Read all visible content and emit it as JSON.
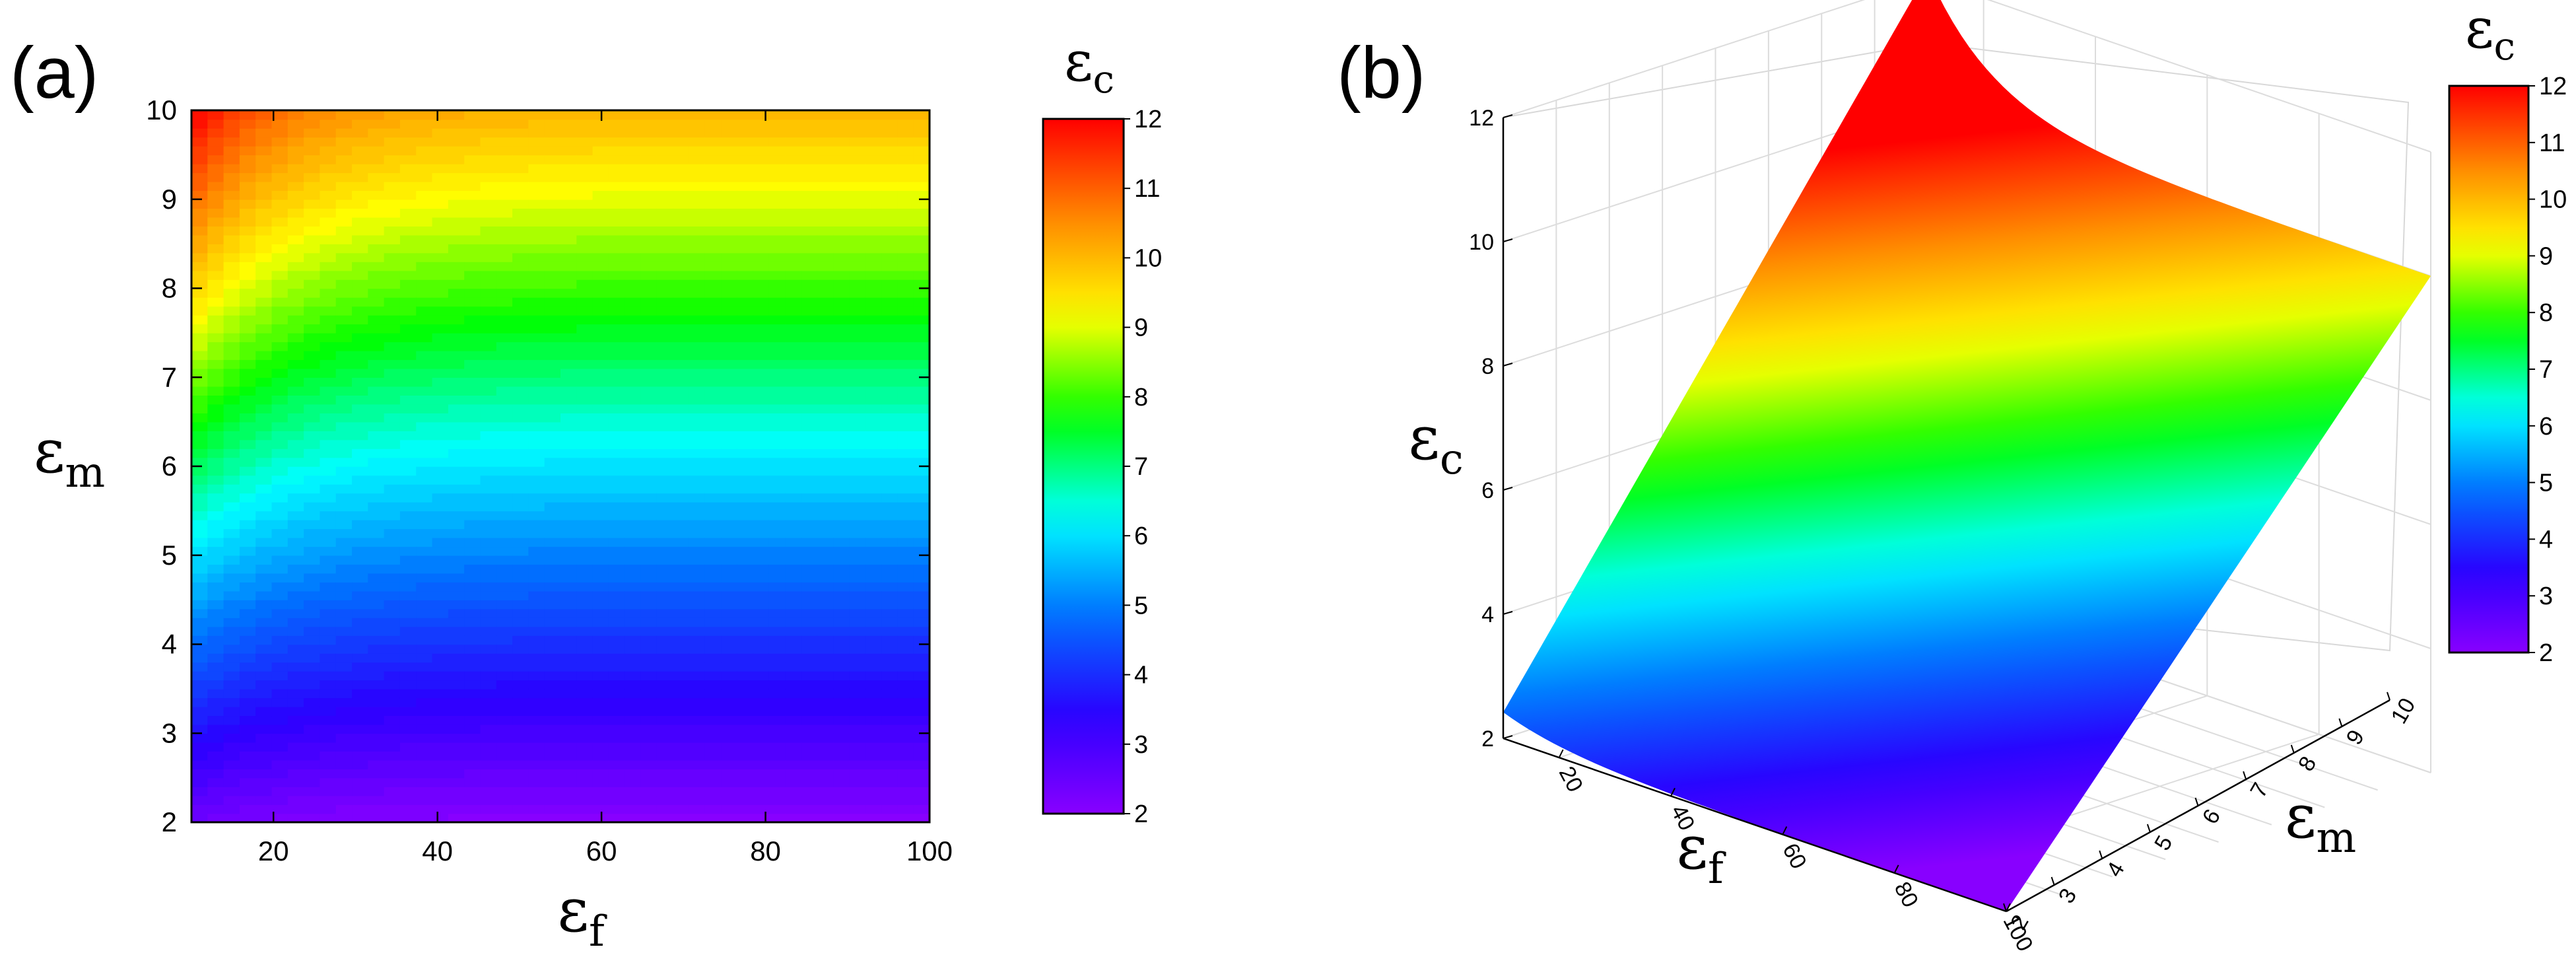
{
  "panels": {
    "a": "(a)",
    "b": "(b)"
  },
  "colors": {
    "colormap": [
      "#8800ff",
      "#2a00ff",
      "#0070ff",
      "#00ffff",
      "#00ff00",
      "#ffff00",
      "#ff8800",
      "#ff0000"
    ]
  },
  "chart_data": [
    {
      "type": "heatmap",
      "title": "",
      "xlabel": {
        "main": "ε",
        "sub": "f"
      },
      "ylabel": {
        "main": "ε",
        "sub": "m"
      },
      "xlim": [
        10,
        100
      ],
      "ylim": [
        2,
        10
      ],
      "x_ticks": [
        "20",
        "40",
        "60",
        "80",
        "100"
      ],
      "x_tick_values": [
        20,
        40,
        60,
        80,
        100
      ],
      "y_ticks": [
        "2",
        "3",
        "4",
        "5",
        "6",
        "7",
        "8",
        "9",
        "10"
      ],
      "y_tick_values": [
        2,
        3,
        4,
        5,
        6,
        7,
        8,
        9,
        10
      ],
      "colorbar": {
        "label": {
          "main": "ε",
          "sub": "c"
        },
        "range": [
          2,
          12
        ],
        "ticks": [
          "2",
          "3",
          "4",
          "5",
          "6",
          "7",
          "8",
          "9",
          "10",
          "11",
          "12"
        ]
      },
      "grid": false
    },
    {
      "type": "surface",
      "title": "",
      "xlabel": {
        "main": "ε",
        "sub": "f"
      },
      "ylabel": {
        "main": "ε",
        "sub": "m"
      },
      "zlabel": {
        "main": "ε",
        "sub": "c"
      },
      "xlim": [
        10,
        100
      ],
      "ylim": [
        2,
        10
      ],
      "zlim": [
        2,
        12
      ],
      "x_ticks": [
        "20",
        "40",
        "60",
        "80",
        "100"
      ],
      "y_ticks": [
        "2",
        "3",
        "4",
        "5",
        "6",
        "7",
        "8",
        "9",
        "10"
      ],
      "z_ticks": [
        "2",
        "4",
        "6",
        "8",
        "10",
        "12"
      ],
      "colorbar": {
        "label": {
          "main": "ε",
          "sub": "c"
        },
        "range": [
          2,
          12
        ],
        "ticks": [
          "2",
          "3",
          "4",
          "5",
          "6",
          "7",
          "8",
          "9",
          "10",
          "11",
          "12"
        ]
      },
      "grid": true
    }
  ]
}
